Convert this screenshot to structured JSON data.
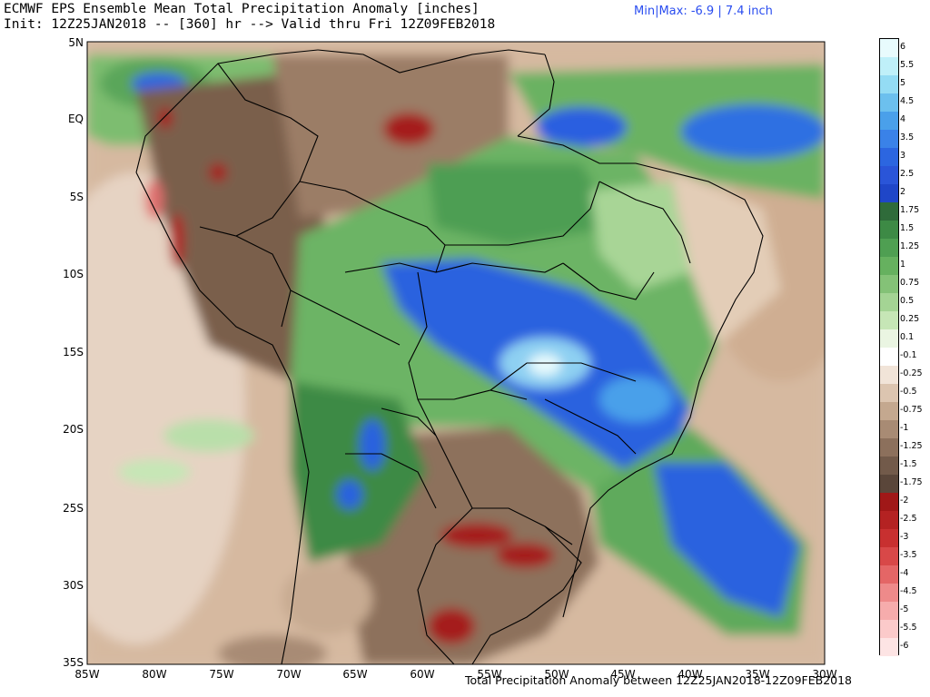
{
  "header": {
    "title_line1": "ECMWF EPS Ensemble Mean Total Precipitation Anomaly [inches]",
    "title_line2": "Init: 12Z25JAN2018 -- [360] hr --> Valid thru Fri 12Z09FEB2018",
    "minmax": "Min|Max: -6.9 | 7.4 inch"
  },
  "footer": {
    "caption": "Total Precipitation Anomaly between 12Z25JAN2018-12Z09FEB2018"
  },
  "axes": {
    "lat_labels": [
      "5N",
      "EQ",
      "5S",
      "10S",
      "15S",
      "20S",
      "25S",
      "30S",
      "35S"
    ],
    "lon_labels": [
      "85W",
      "80W",
      "75W",
      "70W",
      "65W",
      "60W",
      "55W",
      "50W",
      "45W",
      "40W",
      "35W",
      "30W"
    ]
  },
  "legend": {
    "labels": [
      "6",
      "5.5",
      "5",
      "4.5",
      "4",
      "3.5",
      "3",
      "2.5",
      "2",
      "1.75",
      "1.5",
      "1.25",
      "1",
      "0.75",
      "0.5",
      "0.25",
      "0.1",
      "-0.1",
      "-0.25",
      "-0.5",
      "-0.75",
      "-1",
      "-1.25",
      "-1.5",
      "-1.75",
      "-2",
      "-2.5",
      "-3",
      "-3.5",
      "-4",
      "-4.5",
      "-5",
      "-5.5",
      "-6"
    ],
    "colors": [
      "#e8fbfd",
      "#bff0f9",
      "#94dcf4",
      "#6cc0ee",
      "#4aa0ea",
      "#3a82e8",
      "#2c66e0",
      "#2a55d8",
      "#1f46c8",
      "#2f6b3a",
      "#3d8a45",
      "#4f9f52",
      "#66b15f",
      "#84c277",
      "#a4d494",
      "#c6e6b6",
      "#eaf5e2",
      "#ffffff",
      "#f1e4d8",
      "#dcc5b0",
      "#c4a88f",
      "#a88b74",
      "#8c705c",
      "#725a4a",
      "#5a463a",
      "#a01818",
      "#b42222",
      "#c83030",
      "#d84848",
      "#e46666",
      "#ee8a8a",
      "#f6acac",
      "#fbcaca",
      "#fde4e4"
    ]
  }
}
